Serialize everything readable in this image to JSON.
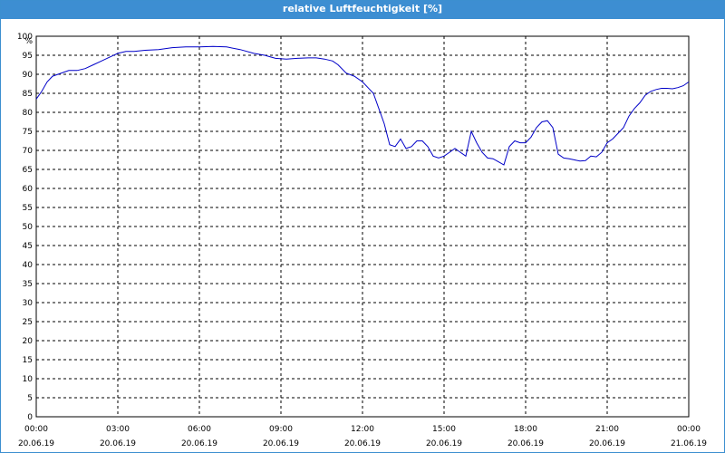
{
  "window": {
    "title": "relative Luftfeuchtigkeit [%]"
  },
  "colors": {
    "title_bar": "#3d8ed2",
    "series_line": "#0000c8",
    "grid": "#000000"
  },
  "chart_data": {
    "type": "line",
    "title": "relative Luftfeuchtigkeit [%]",
    "ylabel": "%",
    "xlabel": "",
    "ylim": [
      0,
      100
    ],
    "y_ticks": [
      0,
      5,
      10,
      15,
      20,
      25,
      30,
      35,
      40,
      45,
      50,
      55,
      60,
      65,
      70,
      75,
      80,
      85,
      90,
      95,
      100
    ],
    "x_unit": "hours since 20.06.19 00:00",
    "xlim": [
      0,
      24
    ],
    "x_ticks": [
      {
        "time": "00:00",
        "date": "20.06.19"
      },
      {
        "time": "03:00",
        "date": "20.06.19"
      },
      {
        "time": "06:00",
        "date": "20.06.19"
      },
      {
        "time": "09:00",
        "date": "20.06.19"
      },
      {
        "time": "12:00",
        "date": "20.06.19"
      },
      {
        "time": "15:00",
        "date": "20.06.19"
      },
      {
        "time": "18:00",
        "date": "20.06.19"
      },
      {
        "time": "21:00",
        "date": "20.06.19"
      },
      {
        "time": "00:00",
        "date": "21.06.19"
      }
    ],
    "grid": true,
    "series": [
      {
        "x": [
          0,
          0.2,
          0.4,
          0.6,
          0.8,
          1.0,
          1.2,
          1.5,
          1.8,
          2.1,
          2.4,
          2.7,
          3.0,
          3.3,
          3.6,
          4.0,
          4.5,
          5.0,
          5.5,
          6.0,
          6.5,
          7.0,
          7.5,
          8.0,
          8.4,
          8.8,
          9.2,
          9.6,
          10.0,
          10.3,
          10.6,
          10.9,
          11.1,
          11.4,
          11.7,
          12.0,
          12.2,
          12.4,
          12.6,
          12.8,
          13.0,
          13.2,
          13.4,
          13.6,
          13.8,
          14.0,
          14.2,
          14.4,
          14.6,
          14.8,
          15.0,
          15.2,
          15.4,
          15.6,
          15.8,
          16.0,
          16.2,
          16.4,
          16.6,
          16.8,
          17.0,
          17.2,
          17.4,
          17.6,
          17.8,
          18.0,
          18.2,
          18.4,
          18.6,
          18.8,
          19.0,
          19.2,
          19.4,
          19.6,
          19.8,
          20.0,
          20.2,
          20.4,
          20.6,
          20.8,
          21.0,
          21.2,
          21.4,
          21.6,
          21.8,
          22.0,
          22.2,
          22.4,
          22.6,
          22.8,
          23.0,
          23.2,
          23.4,
          23.6,
          23.8,
          24.0
        ],
        "values": [
          83.5,
          85.5,
          88,
          89.5,
          90,
          90.5,
          91,
          91,
          91.5,
          92.5,
          93.5,
          94.5,
          95.5,
          96,
          96,
          96.3,
          96.5,
          97,
          97.2,
          97.2,
          97.3,
          97.2,
          96.5,
          95.5,
          95,
          94.2,
          94,
          94.2,
          94.3,
          94.3,
          94,
          93.5,
          92.5,
          90.3,
          89.5,
          88,
          86.5,
          85,
          81,
          77,
          71.5,
          71,
          73,
          70.5,
          71,
          72.5,
          72.5,
          71,
          68.5,
          68,
          68.5,
          69.5,
          70.5,
          69.5,
          68.5,
          75,
          72,
          69.5,
          68,
          67.8,
          67,
          66.2,
          71,
          72.5,
          72,
          72,
          73.5,
          76,
          77.5,
          77.8,
          76,
          69,
          68,
          67.8,
          67.5,
          67.2,
          67.3,
          68.5,
          68.3,
          69.5,
          72,
          73,
          74.5,
          76,
          79,
          81,
          82.5,
          84.5,
          85.5,
          86,
          86.3,
          86.3,
          86.2,
          86.5,
          87,
          88
        ]
      }
    ]
  }
}
